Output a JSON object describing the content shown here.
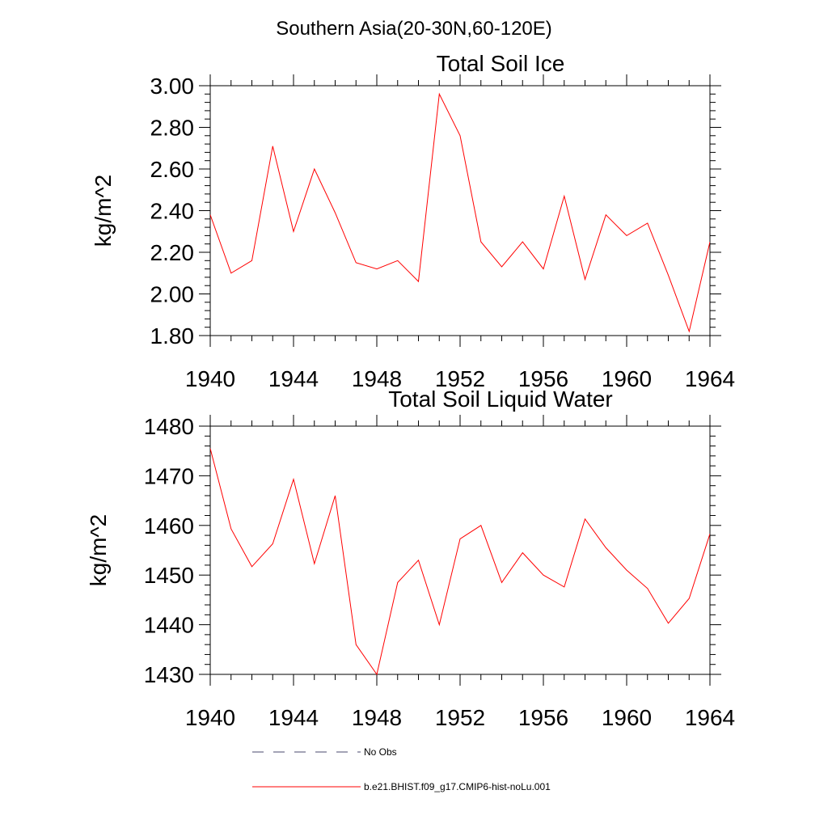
{
  "figure": {
    "main_title": "Southern Asia(20-30N,60-120E)",
    "legend": [
      {
        "label": "No Obs",
        "color": "#6e6e8a",
        "style": "dashed"
      },
      {
        "label": "b.e21.BHIST.f09_g17.CMIP6-hist-noLu.001",
        "color": "#ff0000",
        "style": "solid"
      }
    ]
  },
  "chart_data": [
    {
      "type": "line",
      "title": "Total Soil Ice",
      "ylabel": "kg/m^2",
      "xlabel": "",
      "xlim": [
        1940,
        1964
      ],
      "ylim": [
        1.8,
        3.0
      ],
      "xticks": [
        1940,
        1944,
        1948,
        1952,
        1956,
        1960,
        1964
      ],
      "yticks": [
        1.8,
        2.0,
        2.2,
        2.4,
        2.6,
        2.8,
        3.0
      ],
      "ytick_labels": [
        "1.80",
        "2.00",
        "2.20",
        "2.40",
        "2.60",
        "2.80",
        "3.00"
      ],
      "xtick_labels": [
        "1940",
        "1944",
        "1948",
        "1952",
        "1956",
        "1960",
        "1964"
      ],
      "grid": false,
      "series": [
        {
          "name": "b.e21.BHIST.f09_g17.CMIP6-hist-noLu.001",
          "color": "#ff0000",
          "x": [
            1940,
            1941,
            1942,
            1943,
            1944,
            1945,
            1946,
            1947,
            1948,
            1949,
            1950,
            1951,
            1952,
            1953,
            1954,
            1955,
            1956,
            1957,
            1958,
            1959,
            1960,
            1961,
            1962,
            1963,
            1964
          ],
          "values": [
            2.38,
            2.1,
            2.16,
            2.71,
            2.3,
            2.6,
            2.39,
            2.15,
            2.12,
            2.16,
            2.06,
            2.96,
            2.76,
            2.25,
            2.13,
            2.25,
            2.12,
            2.47,
            2.07,
            2.38,
            2.28,
            2.34,
            2.09,
            1.82,
            2.25
          ]
        }
      ]
    },
    {
      "type": "line",
      "title": "Total Soil Liquid Water",
      "ylabel": "kg/m^2",
      "xlabel": "",
      "xlim": [
        1940,
        1964
      ],
      "ylim": [
        1430,
        1480
      ],
      "xticks": [
        1940,
        1944,
        1948,
        1952,
        1956,
        1960,
        1964
      ],
      "yticks": [
        1430,
        1440,
        1450,
        1460,
        1470,
        1480
      ],
      "ytick_labels": [
        "1430",
        "1440",
        "1450",
        "1460",
        "1470",
        "1480"
      ],
      "xtick_labels": [
        "1940",
        "1944",
        "1948",
        "1952",
        "1956",
        "1960",
        "1964"
      ],
      "grid": false,
      "series": [
        {
          "name": "b.e21.BHIST.f09_g17.CMIP6-hist-noLu.001",
          "color": "#ff0000",
          "x": [
            1940,
            1941,
            1942,
            1943,
            1944,
            1945,
            1946,
            1947,
            1948,
            1949,
            1950,
            1951,
            1952,
            1953,
            1954,
            1955,
            1956,
            1957,
            1958,
            1959,
            1960,
            1961,
            1962,
            1963,
            1964
          ],
          "values": [
            1475.5,
            1459.3,
            1451.7,
            1456.3,
            1469.3,
            1452.3,
            1466.0,
            1436.0,
            1430.0,
            1448.5,
            1453.0,
            1440.0,
            1457.3,
            1460.0,
            1448.5,
            1454.5,
            1450.0,
            1447.6,
            1461.3,
            1455.5,
            1451.0,
            1447.3,
            1440.3,
            1445.3,
            1458.3
          ]
        }
      ]
    }
  ]
}
